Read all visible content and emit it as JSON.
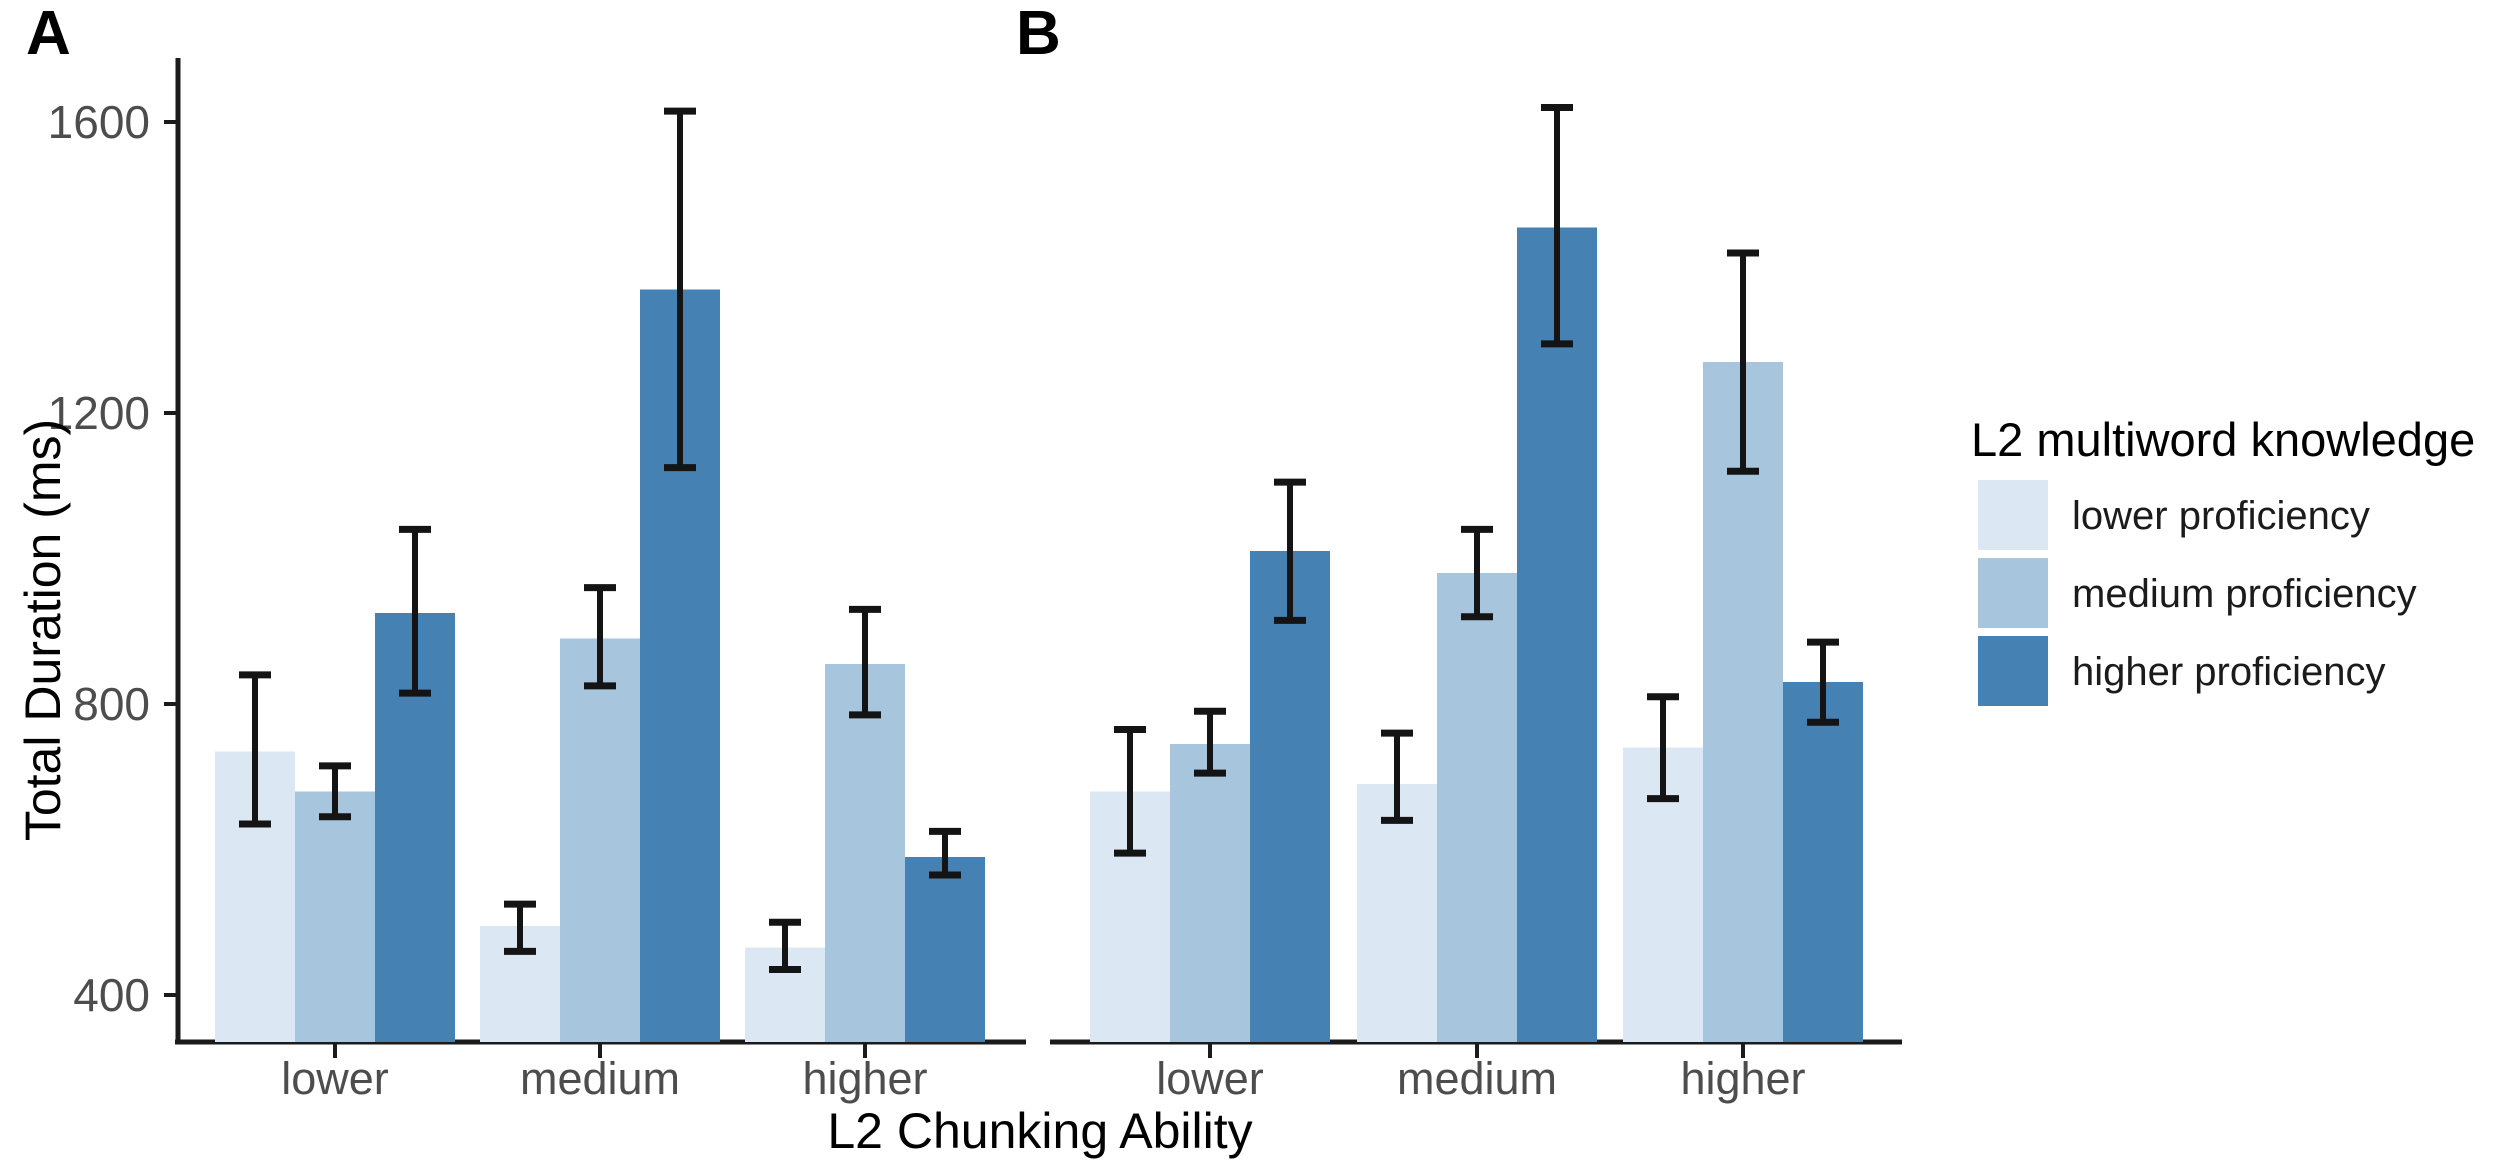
{
  "figure": {
    "background": "#ffffff",
    "panel_labels": [
      "A",
      "B"
    ]
  },
  "axes": {
    "y_title": "Total Duration (ms)",
    "x_title": "L2 Chunking Ability",
    "y_tick_labels": [
      "400",
      "800",
      "1200",
      "1600"
    ],
    "x_tick_labels": [
      "lower",
      "medium",
      "higher"
    ],
    "tick_text_color": "#4d4d4d",
    "axis_line_color": "#1b1b1b"
  },
  "legend": {
    "title": "L2 multiword knowledge",
    "items": [
      {
        "label": "lower proficiency",
        "color": "#dbe7f2"
      },
      {
        "label": "medium proficiency",
        "color": "#a7c6de"
      },
      {
        "label": "higher proficiency",
        "color": "#4681b4"
      }
    ]
  },
  "chart_data": {
    "type": "bar",
    "title": "",
    "xlabel": "L2 Chunking Ability",
    "ylabel": "Total Duration (ms)",
    "ylim": [
      335,
      1690
    ],
    "y_ticks": [
      400,
      800,
      1200,
      1600
    ],
    "categories": [
      "lower",
      "medium",
      "higher"
    ],
    "grid": false,
    "legend_position": "right",
    "error_bars": true,
    "panels": [
      {
        "label": "A",
        "series": [
          {
            "name": "lower proficiency",
            "color": "#dbe7f2",
            "values": [
              735,
              495,
              465
            ],
            "ci_low": [
              635,
              460,
              435
            ],
            "ci_high": [
              840,
              525,
              500
            ]
          },
          {
            "name": "medium proficiency",
            "color": "#a7c6de",
            "values": [
              680,
              890,
              855
            ],
            "ci_low": [
              645,
              825,
              785
            ],
            "ci_high": [
              715,
              960,
              930
            ]
          },
          {
            "name": "higher proficiency",
            "color": "#4681b4",
            "values": [
              925,
              1370,
              590
            ],
            "ci_low": [
              815,
              1125,
              565
            ],
            "ci_high": [
              1040,
              1615,
              625
            ]
          }
        ]
      },
      {
        "label": "B",
        "series": [
          {
            "name": "lower proficiency",
            "color": "#dbe7f2",
            "values": [
              680,
              690,
              740
            ],
            "ci_low": [
              595,
              640,
              670
            ],
            "ci_high": [
              765,
              760,
              810
            ]
          },
          {
            "name": "medium proficiency",
            "color": "#a7c6de",
            "values": [
              745,
              980,
              1270
            ],
            "ci_low": [
              705,
              920,
              1120
            ],
            "ci_high": [
              790,
              1040,
              1420
            ]
          },
          {
            "name": "higher proficiency",
            "color": "#4681b4",
            "values": [
              1010,
              1455,
              830
            ],
            "ci_low": [
              915,
              1295,
              775
            ],
            "ci_high": [
              1105,
              1620,
              885
            ]
          }
        ]
      }
    ]
  }
}
